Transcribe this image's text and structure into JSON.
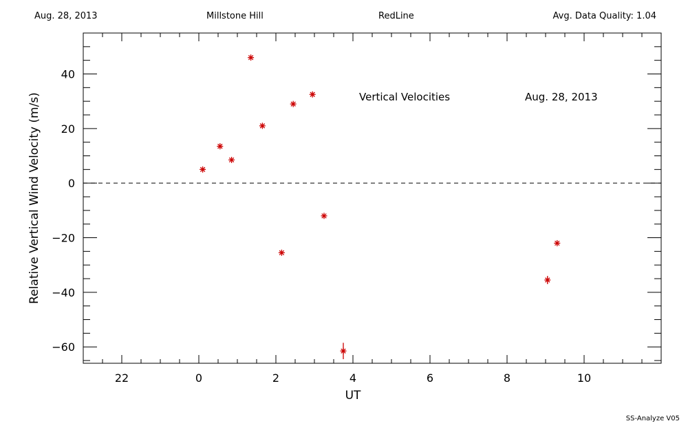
{
  "header": {
    "date": "Aug. 28, 2013",
    "site": "Millstone Hill",
    "line": "RedLine",
    "quality": "Avg. Data Quality: 1.04"
  },
  "footer": "SS-Analyze V05",
  "chart_data": {
    "type": "scatter",
    "annotations": [
      "Vertical Velocities",
      "Aug. 28, 2013"
    ],
    "xlabel": "UT",
    "ylabel": "Relative Vertical Wind Velocity (m/s)",
    "xlim": [
      21,
      36
    ],
    "ylim": [
      -66,
      55
    ],
    "x_ticks": [
      22,
      24,
      26,
      28,
      30,
      32,
      34
    ],
    "x_tick_labels": [
      "22",
      "0",
      "2",
      "4",
      "6",
      "8",
      "10"
    ],
    "y_ticks": [
      -60,
      -40,
      -20,
      0,
      20,
      40
    ],
    "y_tick_labels": [
      "−60",
      "−40",
      "−20",
      "0",
      "20",
      "40"
    ],
    "marker_color": "#cc0000",
    "zero_line": "dashed",
    "series": [
      {
        "x": [
          24.1,
          24.55,
          24.85,
          25.35,
          25.65,
          26.15,
          26.45,
          26.95,
          27.25,
          27.75,
          33.05,
          33.3
        ],
        "y": [
          5,
          13.5,
          8.5,
          46,
          21,
          -25.5,
          29,
          32.5,
          -12,
          -61.5,
          -35.5,
          -22
        ],
        "y_err": [
          0,
          0,
          0,
          0,
          0,
          0,
          0,
          0,
          0,
          3,
          1.5,
          0
        ]
      }
    ]
  }
}
